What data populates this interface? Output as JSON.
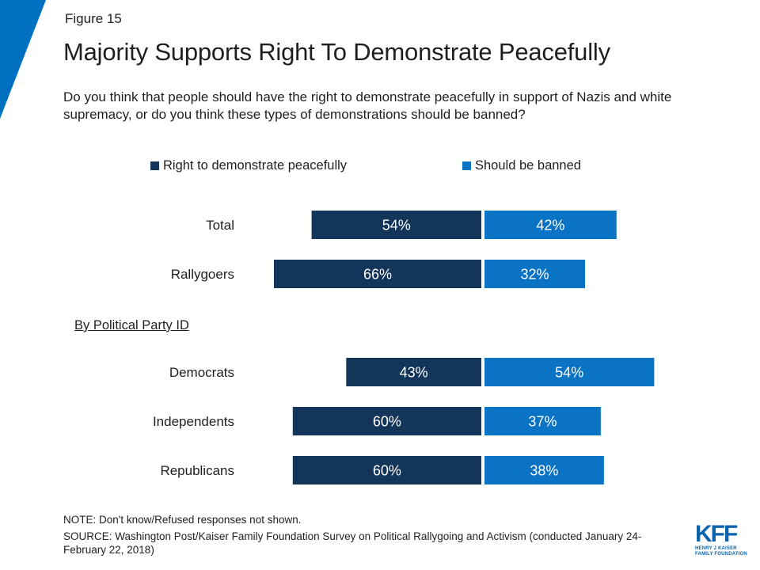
{
  "figure_label": "Figure 15",
  "title": "Majority Supports Right To Demonstrate Peacefully",
  "subtitle": "Do you think that people should have the right to demonstrate peacefully in support of Nazis and white supremacy, or do you think these types of demonstrations should be banned?",
  "colors": {
    "accent": "#0070c0",
    "right_to_demonstrate": "#14355a",
    "should_be_banned": "#0a73c4"
  },
  "chart_data": {
    "type": "bar",
    "orientation": "diverging-horizontal",
    "legend_position": "top",
    "series": [
      {
        "name": "Right to demonstrate peacefully",
        "values": [
          54,
          66,
          43,
          60,
          60
        ]
      },
      {
        "name": "Should be banned",
        "values": [
          42,
          32,
          54,
          37,
          38
        ]
      }
    ],
    "categories": [
      "Total",
      "Rallygoers",
      "Democrats",
      "Independents",
      "Republicans"
    ],
    "groups": [
      {
        "label": "",
        "categories": [
          "Total",
          "Rallygoers"
        ]
      },
      {
        "label": "By Political Party ID",
        "categories": [
          "Democrats",
          "Independents",
          "Republicans"
        ]
      }
    ],
    "value_suffix": "%"
  },
  "note": "NOTE: Don't know/Refused responses not shown.",
  "source": "SOURCE: Washington Post/Kaiser Family Foundation Survey on Political Rallygoing and Activism (conducted January 24-February 22, 2018)",
  "logo": {
    "letters": "KFF",
    "line1": "HENRY J KAISER",
    "line2": "FAMILY FOUNDATION"
  }
}
